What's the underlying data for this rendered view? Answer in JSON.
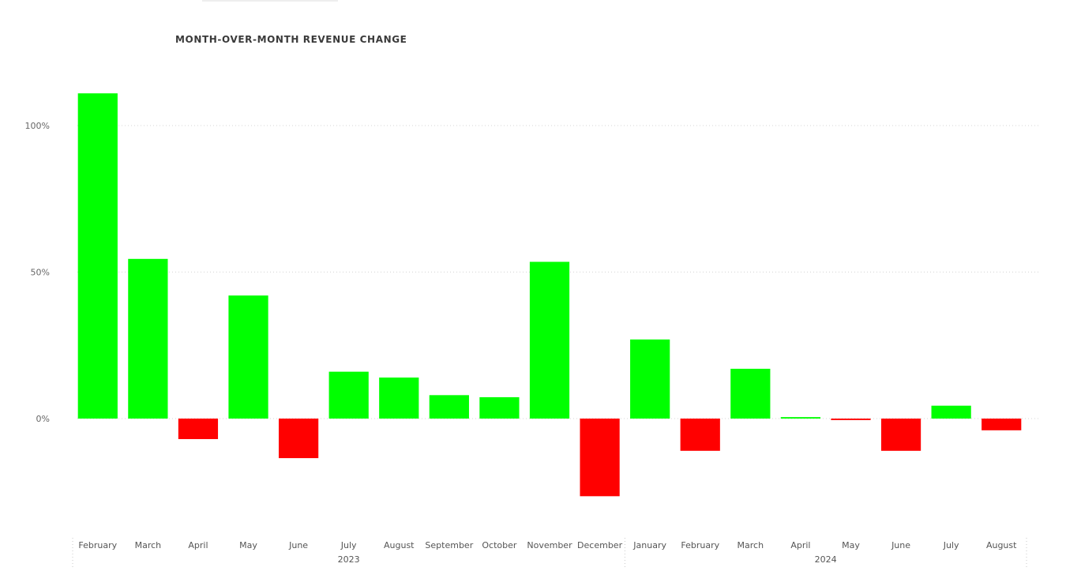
{
  "chart_data": {
    "type": "bar",
    "title": "MONTH-OVER-MONTH REVENUE CHANGE",
    "xlabel": "",
    "ylabel": "",
    "ylim": [
      -0.38,
      1.12
    ],
    "y_ticks": [
      {
        "value": 0,
        "label": "0%"
      },
      {
        "value": 0.5,
        "label": "50%"
      },
      {
        "value": 1.0,
        "label": "100%"
      }
    ],
    "grid": "dotted horizontal",
    "positive_color": "#00ff00",
    "negative_color": "#ff0000",
    "categories": [
      "February",
      "March",
      "April",
      "May",
      "June",
      "July",
      "August",
      "September",
      "October",
      "November",
      "December",
      "January",
      "February",
      "March",
      "April",
      "May",
      "June",
      "July",
      "August"
    ],
    "years": [
      {
        "label": "2023",
        "span": 11
      },
      {
        "label": "2024",
        "span": 8
      }
    ],
    "values": [
      1.11,
      0.545,
      -0.07,
      0.42,
      -0.135,
      0.16,
      0.14,
      0.08,
      0.073,
      0.535,
      -0.265,
      0.27,
      -0.11,
      0.17,
      0.005,
      -0.005,
      -0.11,
      0.044,
      -0.04
    ]
  }
}
